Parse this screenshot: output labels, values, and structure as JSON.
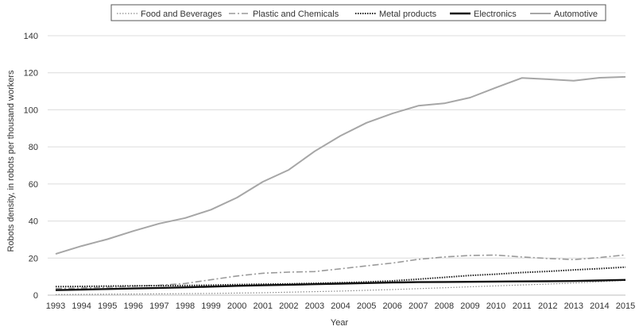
{
  "chart_data": {
    "type": "line",
    "title": "",
    "xlabel": "Year",
    "ylabel": "Robots density, in robots per thousand workers",
    "x": [
      1993,
      1994,
      1995,
      1996,
      1997,
      1998,
      1999,
      2000,
      2001,
      2002,
      2003,
      2004,
      2005,
      2006,
      2007,
      2008,
      2009,
      2010,
      2011,
      2012,
      2013,
      2014,
      2015
    ],
    "ylim": [
      0,
      140
    ],
    "yticks": [
      0,
      20,
      40,
      60,
      80,
      100,
      120,
      140
    ],
    "grid": {
      "horizontal": true,
      "vertical": false
    },
    "legend_position": "top",
    "series": [
      {
        "name": "Food and Beverages",
        "style": "dotted-thin",
        "color": "#8a8a8a",
        "values": [
          0.3,
          0.4,
          0.5,
          0.6,
          0.7,
          0.8,
          0.9,
          1.1,
          1.3,
          1.6,
          1.9,
          2.2,
          2.6,
          3.0,
          3.5,
          4.0,
          4.5,
          5.0,
          5.5,
          6.0,
          6.5,
          7.2,
          8.0
        ]
      },
      {
        "name": "Plastic and Chemicals",
        "style": "dash-dot",
        "color": "#9a9a9a",
        "values": [
          3.5,
          3.9,
          4.3,
          4.8,
          5.3,
          6.3,
          8.3,
          10.3,
          11.8,
          12.4,
          12.7,
          14.2,
          15.8,
          17.3,
          19.3,
          20.6,
          21.4,
          21.6,
          20.6,
          19.8,
          19.2,
          20.3,
          21.7
        ]
      },
      {
        "name": "Metal products",
        "style": "dotted-bold",
        "color": "#222222",
        "values": [
          4.6,
          4.7,
          4.9,
          5.0,
          5.1,
          5.2,
          5.4,
          5.7,
          5.9,
          6.1,
          6.4,
          6.7,
          7.1,
          7.7,
          8.6,
          9.6,
          10.6,
          11.3,
          12.2,
          12.8,
          13.6,
          14.3,
          15.1
        ]
      },
      {
        "name": "Electronics",
        "style": "solid-bold",
        "color": "#111111",
        "values": [
          2.7,
          3.0,
          3.3,
          3.6,
          3.9,
          4.2,
          4.6,
          5.0,
          5.3,
          5.6,
          5.9,
          6.2,
          6.5,
          6.8,
          7.0,
          7.1,
          7.2,
          7.3,
          7.4,
          7.5,
          7.6,
          7.9,
          8.2
        ]
      },
      {
        "name": "Automotive",
        "style": "solid-gray",
        "color": "#a6a6a6",
        "values": [
          22.2,
          26.5,
          30.2,
          34.6,
          38.6,
          41.6,
          46.1,
          52.6,
          61.2,
          67.6,
          77.6,
          86.0,
          93.0,
          98.0,
          102.2,
          103.5,
          106.6,
          112.0,
          117.2,
          116.5,
          115.7,
          117.3,
          117.8
        ]
      }
    ]
  }
}
